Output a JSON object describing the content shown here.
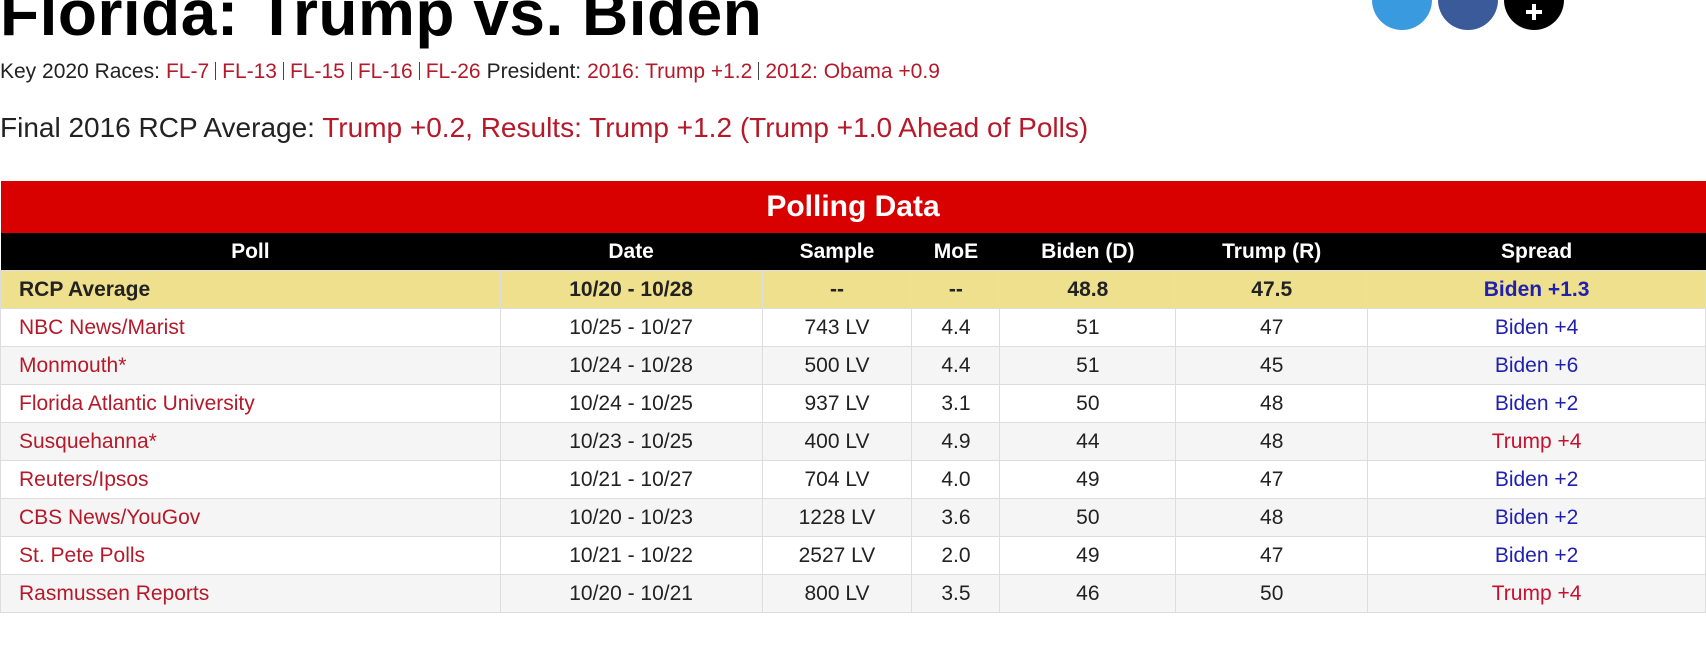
{
  "header": {
    "title": "Florida: Trump vs. Biden",
    "key_label": "Key 2020 Races:",
    "races": [
      "FL-7",
      "FL-13",
      "FL-15",
      "FL-16",
      "FL-26"
    ],
    "president_label": "President:",
    "president_links": [
      "2016: Trump +1.2",
      "2012: Obama +0.9"
    ],
    "final_label": "Final 2016 RCP Average:",
    "final_text": "Trump +0.2, Results: Trump +1.2 (Trump +1.0 Ahead of Polls)"
  },
  "table": {
    "title": "Polling Data",
    "columns": [
      "Poll",
      "Date",
      "Sample",
      "MoE",
      "Biden (D)",
      "Trump (R)",
      "Spread"
    ],
    "average": [
      "RCP Average",
      "10/20 - 10/28",
      "--",
      "--",
      "48.8",
      "47.5",
      "Biden +1.3"
    ],
    "average_spread_color": "#1f1fb0",
    "rows": [
      [
        "NBC News/Marist",
        "10/25 - 10/27",
        "743 LV",
        "4.4",
        "51",
        "47",
        "Biden +4"
      ],
      [
        "Monmouth*",
        "10/24 - 10/28",
        "500 LV",
        "4.4",
        "51",
        "45",
        "Biden +6"
      ],
      [
        "Florida Atlantic University",
        "10/24 - 10/25",
        "937 LV",
        "3.1",
        "50",
        "48",
        "Biden +2"
      ],
      [
        "Susquehanna*",
        "10/23 - 10/25",
        "400 LV",
        "4.9",
        "44",
        "48",
        "Trump +4"
      ],
      [
        "Reuters/Ipsos",
        "10/21 - 10/27",
        "704 LV",
        "4.0",
        "49",
        "47",
        "Biden +2"
      ],
      [
        "CBS News/YouGov",
        "10/20 - 10/23",
        "1228 LV",
        "3.6",
        "50",
        "48",
        "Biden +2"
      ],
      [
        "St. Pete Polls",
        "10/21 - 10/22",
        "2527 LV",
        "2.0",
        "49",
        "47",
        "Biden +2"
      ],
      [
        "Rasmussen Reports",
        "10/20 - 10/21",
        "800 LV",
        "3.5",
        "46",
        "50",
        "Trump +4"
      ]
    ],
    "spread_colors": [
      "#1f1fb0",
      "#1f1fb0",
      "#1f1fb0",
      "#c8102e",
      "#1f1fb0",
      "#1f1fb0",
      "#1f1fb0",
      "#c8102e"
    ]
  }
}
